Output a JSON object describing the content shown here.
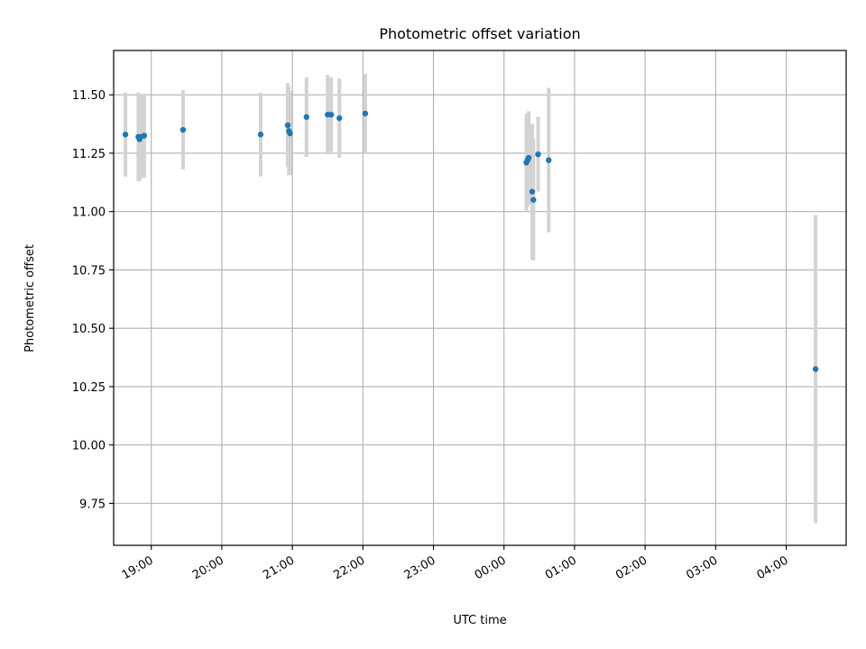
{
  "chart_data": {
    "type": "scatter",
    "title": "Photometric offset variation",
    "xlabel": "UTC time",
    "ylabel": "Photometric offset",
    "x_unit": "UTC time (HH:MM), night spanning midnight",
    "x_range": [
      "18:28",
      "04:51"
    ],
    "ylim": [
      9.57,
      11.69
    ],
    "grid": true,
    "legend": "none",
    "x_ticks": [
      "19:00",
      "20:00",
      "21:00",
      "22:00",
      "23:00",
      "00:00",
      "01:00",
      "02:00",
      "03:00",
      "04:00"
    ],
    "y_ticks": [
      "9.75",
      "10.00",
      "10.25",
      "10.50",
      "10.75",
      "11.00",
      "11.25",
      "11.50"
    ],
    "series": [
      {
        "marker_color": "#1f77b4",
        "errorbar_color": "#d3d3d3",
        "points": [
          {
            "x": "18:38",
            "y": 11.33,
            "err": 0.18
          },
          {
            "x": "18:49",
            "y": 11.32,
            "err": 0.19
          },
          {
            "x": "18:50",
            "y": 11.31,
            "err": 0.18
          },
          {
            "x": "18:51",
            "y": 11.32,
            "err": 0.18
          },
          {
            "x": "18:54",
            "y": 11.325,
            "err": 0.18
          },
          {
            "x": "19:27",
            "y": 11.35,
            "err": 0.17
          },
          {
            "x": "20:33",
            "y": 11.33,
            "err": 0.18
          },
          {
            "x": "20:56",
            "y": 11.37,
            "err": 0.18
          },
          {
            "x": "20:57",
            "y": 11.345,
            "err": 0.19
          },
          {
            "x": "20:58",
            "y": 11.335,
            "err": 0.18
          },
          {
            "x": "21:12",
            "y": 11.405,
            "err": 0.17
          },
          {
            "x": "21:30",
            "y": 11.415,
            "err": 0.17
          },
          {
            "x": "21:33",
            "y": 11.415,
            "err": 0.16
          },
          {
            "x": "21:40",
            "y": 11.4,
            "err": 0.17
          },
          {
            "x": "22:02",
            "y": 11.42,
            "err": 0.17
          },
          {
            "x": "00:19",
            "y": 11.21,
            "err": 0.21
          },
          {
            "x": "00:20",
            "y": 11.22,
            "err": 0.2
          },
          {
            "x": "00:21",
            "y": 11.23,
            "err": 0.2
          },
          {
            "x": "00:24",
            "y": 11.085,
            "err": 0.29
          },
          {
            "x": "00:25",
            "y": 11.05,
            "err": 0.26
          },
          {
            "x": "00:29",
            "y": 11.245,
            "err": 0.16
          },
          {
            "x": "00:38",
            "y": 11.22,
            "err": 0.31
          },
          {
            "x": "04:25",
            "y": 10.325,
            "err": 0.66
          }
        ]
      }
    ]
  }
}
